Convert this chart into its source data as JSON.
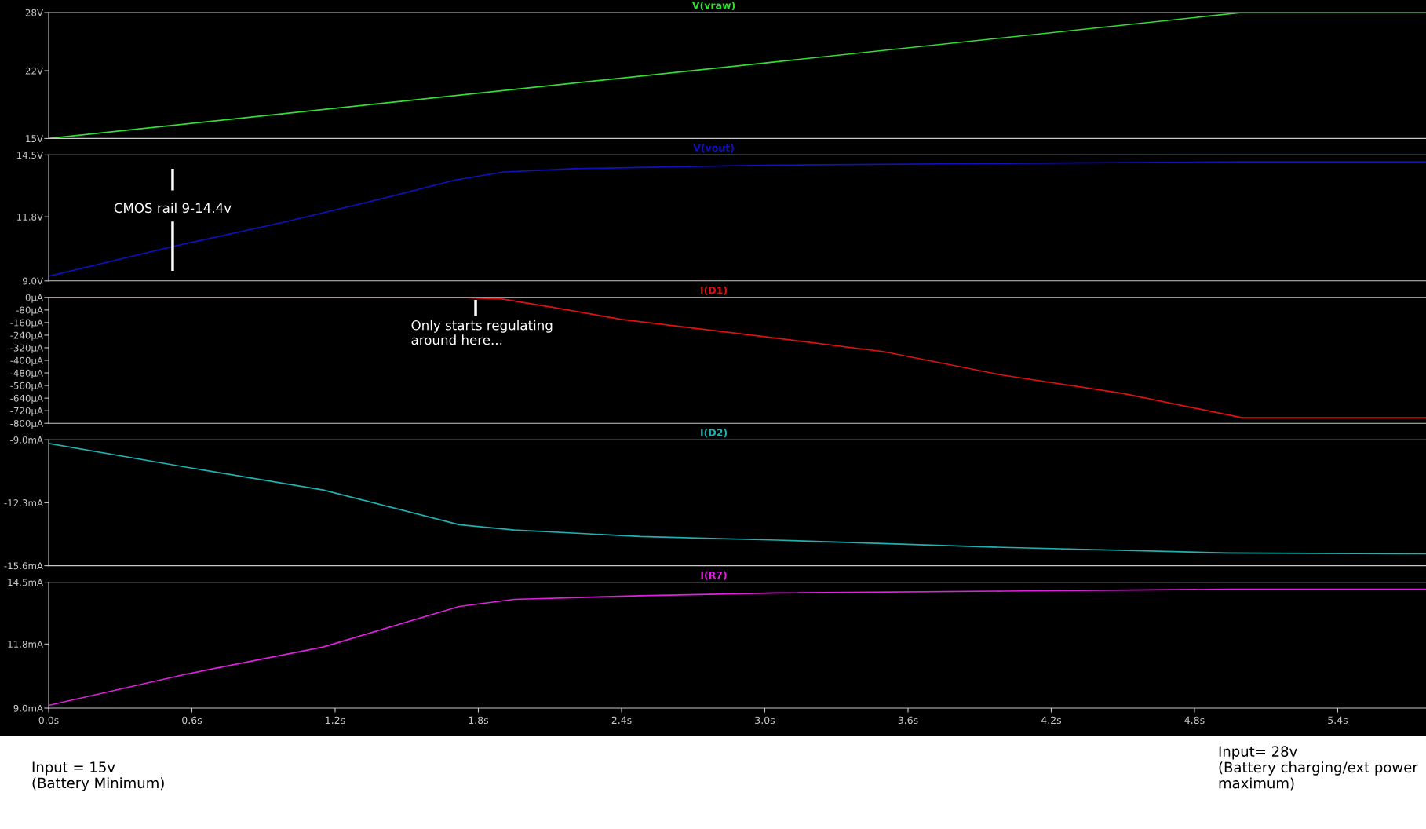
{
  "chart_data": [
    {
      "type": "line",
      "xlim": [
        0,
        5.77
      ],
      "ylim": [
        15,
        28
      ],
      "yticks": [
        {
          "value": 15,
          "label": "15V"
        },
        {
          "value": 22,
          "label": "22V"
        },
        {
          "value": 28,
          "label": "28V"
        }
      ],
      "tick_labels": "y",
      "series": [
        {
          "name": "V(vraw)",
          "color": "#33dd33",
          "x": [
            0,
            5.0,
            5.77
          ],
          "values": [
            15,
            28,
            28
          ]
        }
      ]
    },
    {
      "type": "line",
      "xlim": [
        0,
        5.77
      ],
      "ylim": [
        9.0,
        14.5
      ],
      "yticks": [
        {
          "value": 9.0,
          "label": "9.0V"
        },
        {
          "value": 11.8,
          "label": "11.8V"
        },
        {
          "value": 14.5,
          "label": "14.5V"
        }
      ],
      "tick_labels": "y",
      "series": [
        {
          "name": "V(vout)",
          "color": "#1010c0",
          "x": [
            0,
            0.52,
            1.0,
            1.4,
            1.7,
            1.9,
            2.2,
            2.6,
            3.0,
            4.0,
            5.0,
            5.77
          ],
          "values": [
            9.2,
            10.5,
            11.6,
            12.6,
            13.4,
            13.75,
            13.9,
            13.98,
            14.05,
            14.13,
            14.2,
            14.2
          ]
        }
      ],
      "annotations": [
        "CMOS rail 9-14.4v"
      ]
    },
    {
      "type": "line",
      "xlim": [
        0,
        5.77
      ],
      "ylim": [
        -800,
        0
      ],
      "yticks": [
        {
          "value": 0,
          "label": "0µA"
        },
        {
          "value": -80,
          "label": "-80µA"
        },
        {
          "value": -160,
          "label": "-160µA"
        },
        {
          "value": -240,
          "label": "-240µA"
        },
        {
          "value": -320,
          "label": "-320µA"
        },
        {
          "value": -400,
          "label": "-400µA"
        },
        {
          "value": -480,
          "label": "-480µA"
        },
        {
          "value": -560,
          "label": "-560µA"
        },
        {
          "value": -640,
          "label": "-640µA"
        },
        {
          "value": -720,
          "label": "-720µA"
        },
        {
          "value": -800,
          "label": "-800µA"
        }
      ],
      "tick_labels": "y",
      "series": [
        {
          "name": "I(D1)",
          "color": "#e01010",
          "x": [
            0,
            1.72,
            1.9,
            2.1,
            2.4,
            3.0,
            3.5,
            4.0,
            4.5,
            5.0,
            5.77
          ],
          "values": [
            0,
            0,
            -10,
            -60,
            -140,
            -250,
            -345,
            -495,
            -610,
            -765,
            -765
          ]
        }
      ],
      "annotations": [
        "Only starts regulating\naround here..."
      ]
    },
    {
      "type": "line",
      "xlim": [
        0,
        5.77
      ],
      "ylim": [
        -15.6,
        -9.0
      ],
      "yticks": [
        {
          "value": -9.0,
          "label": "-9.0mA"
        },
        {
          "value": -12.3,
          "label": "-12.3mA"
        },
        {
          "value": -15.6,
          "label": "-15.6mA"
        }
      ],
      "tick_labels": "y",
      "series": [
        {
          "name": "I(D2)",
          "color": "#20b0b0",
          "x": [
            0,
            0.58,
            1.15,
            1.72,
            1.95,
            2.48,
            3.05,
            4.0,
            4.94,
            5.77
          ],
          "values": [
            -9.19,
            -10.44,
            -11.63,
            -13.45,
            -13.73,
            -14.07,
            -14.26,
            -14.64,
            -14.93,
            -14.98
          ]
        }
      ]
    },
    {
      "type": "line",
      "xlim": [
        0,
        5.77
      ],
      "xticks": [
        {
          "value": 0,
          "label": "0.0s"
        },
        {
          "value": 0.6,
          "label": "0.6s"
        },
        {
          "value": 1.2,
          "label": "1.2s"
        },
        {
          "value": 1.8,
          "label": "1.8s"
        },
        {
          "value": 2.4,
          "label": "2.4s"
        },
        {
          "value": 3.0,
          "label": "3.0s"
        },
        {
          "value": 3.6,
          "label": "3.6s"
        },
        {
          "value": 4.2,
          "label": "4.2s"
        },
        {
          "value": 4.8,
          "label": "4.8s"
        },
        {
          "value": 5.4,
          "label": "5.4s"
        }
      ],
      "ylim": [
        9.0,
        14.5
      ],
      "yticks": [
        {
          "value": 9.0,
          "label": "9.0mA"
        },
        {
          "value": 11.8,
          "label": "11.8mA"
        },
        {
          "value": 14.5,
          "label": "14.5mA"
        }
      ],
      "series": [
        {
          "name": "I(R7)",
          "color": "#e020e0",
          "x": [
            0,
            0.58,
            1.15,
            1.72,
            1.95,
            2.48,
            3.05,
            4.0,
            4.94,
            5.77
          ],
          "values": [
            9.12,
            10.49,
            11.67,
            13.44,
            13.75,
            13.91,
            14.03,
            14.11,
            14.19,
            14.19
          ]
        }
      ],
      "annotations": [
        "Input = 15v\n(Battery Minimum)",
        "Input= 28v\n(Battery charging/ext power\nmaximum)"
      ]
    }
  ]
}
